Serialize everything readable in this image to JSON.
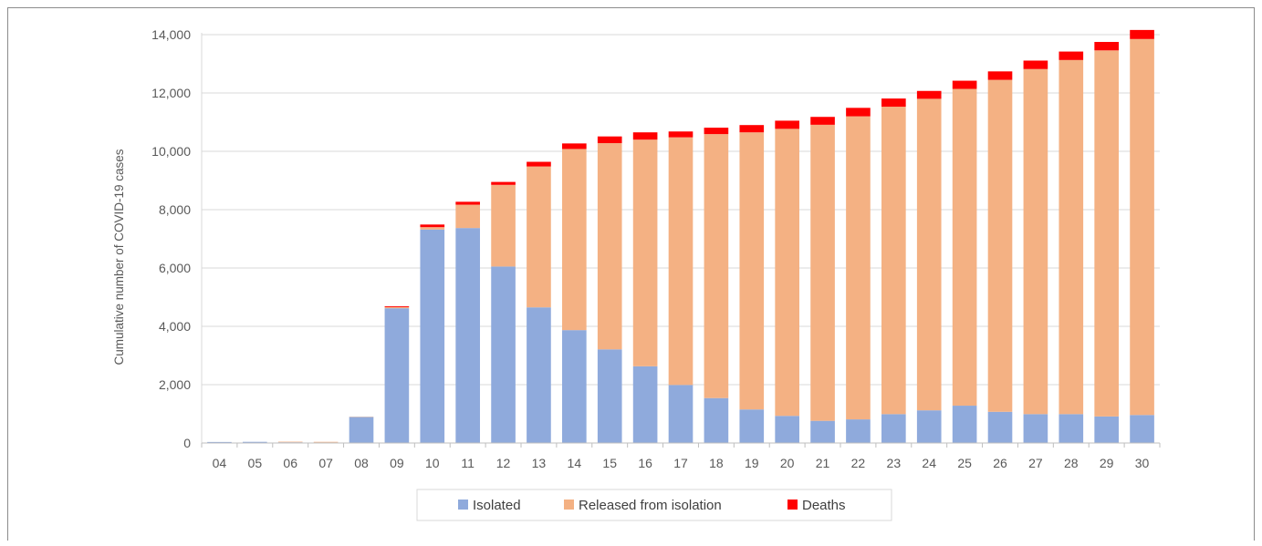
{
  "chart_data": {
    "type": "bar",
    "stacked": true,
    "categories": [
      "04",
      "05",
      "06",
      "07",
      "08",
      "09",
      "10",
      "11",
      "12",
      "13",
      "14",
      "15",
      "16",
      "17",
      "18",
      "19",
      "20",
      "21",
      "22",
      "23",
      "24",
      "25",
      "26",
      "27",
      "28",
      "29",
      "30"
    ],
    "series": [
      {
        "name": "Isolated",
        "color": "#8faadc",
        "values": [
          35,
          40,
          25,
          20,
          890,
          4620,
          7320,
          7370,
          6050,
          4650,
          3870,
          3210,
          2630,
          1990,
          1540,
          1150,
          930,
          760,
          810,
          990,
          1120,
          1280,
          1070,
          990,
          990,
          910,
          960
        ]
      },
      {
        "name": "Released from isolation",
        "color": "#f4b183",
        "values": [
          0,
          0,
          20,
          20,
          10,
          40,
          80,
          800,
          2800,
          4830,
          6210,
          7070,
          7770,
          8490,
          9050,
          9500,
          9840,
          10150,
          10390,
          10540,
          10680,
          10860,
          11380,
          11830,
          12140,
          12550,
          12890
        ]
      },
      {
        "name": "Deaths",
        "color": "#ff0000",
        "values": [
          0,
          0,
          0,
          0,
          0,
          30,
          90,
          100,
          100,
          160,
          190,
          230,
          250,
          200,
          220,
          250,
          280,
          270,
          290,
          280,
          270,
          280,
          290,
          290,
          290,
          290,
          310
        ]
      }
    ],
    "ylabel": "Cumulative number of COVID-19 cases",
    "xlabel": "",
    "ylim": [
      0,
      14000
    ],
    "yticks": [
      0,
      2000,
      4000,
      6000,
      8000,
      10000,
      12000,
      14000
    ],
    "ytick_labels": [
      "0",
      "2,000",
      "4,000",
      "6,000",
      "8,000",
      "10,000",
      "12,000",
      "14,000"
    ],
    "grid": true,
    "legend_position": "bottom"
  }
}
